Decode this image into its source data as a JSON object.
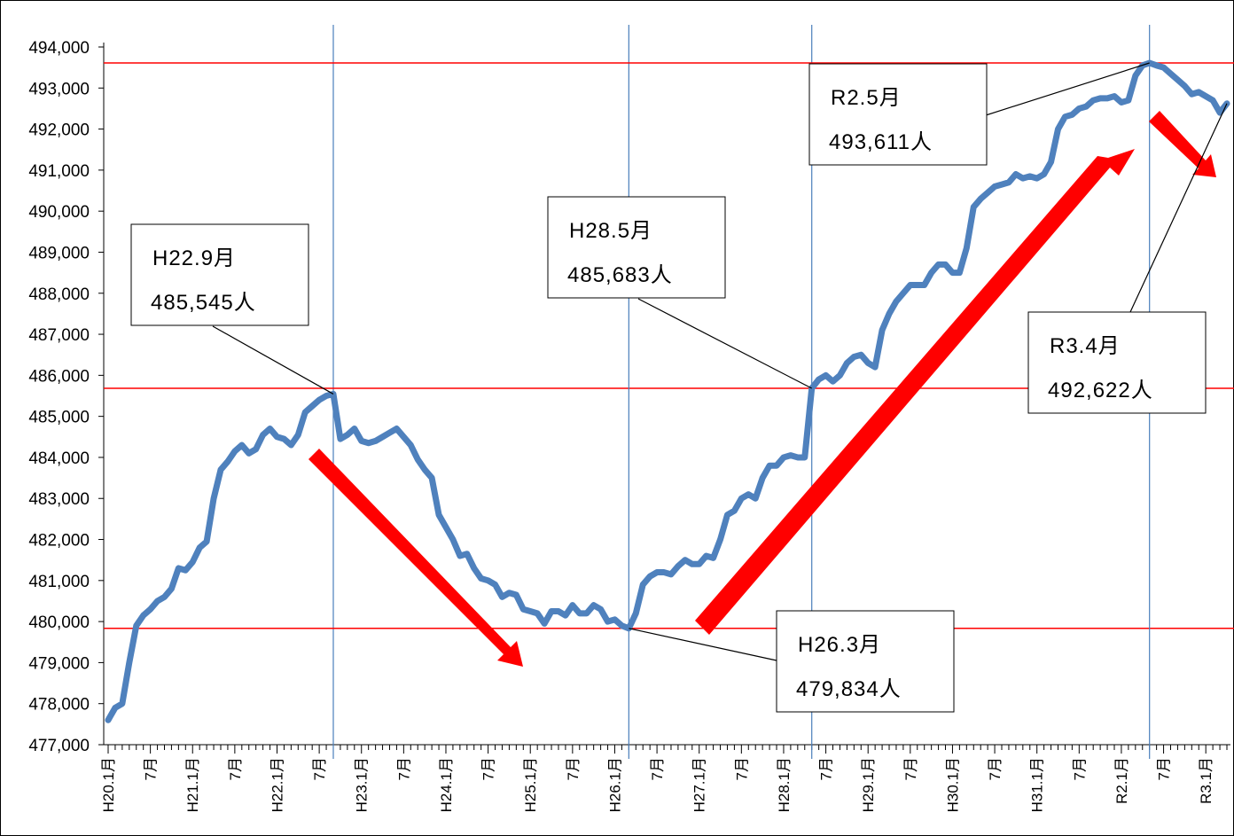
{
  "chart_data": {
    "type": "line",
    "categories": [
      "H20.1月",
      null,
      null,
      null,
      null,
      null,
      "7月",
      null,
      null,
      null,
      null,
      null,
      "H21.1月",
      null,
      null,
      null,
      null,
      null,
      "7月",
      null,
      null,
      null,
      null,
      null,
      "H22.1月",
      null,
      null,
      null,
      null,
      null,
      "7月",
      null,
      null,
      null,
      null,
      null,
      "H23.1月",
      null,
      null,
      null,
      null,
      null,
      "7月",
      null,
      null,
      null,
      null,
      null,
      "H24.1月",
      null,
      null,
      null,
      null,
      null,
      "7月",
      null,
      null,
      null,
      null,
      null,
      "H25.1月",
      null,
      null,
      null,
      null,
      null,
      "7月",
      null,
      null,
      null,
      null,
      null,
      "H26.1月",
      null,
      null,
      null,
      null,
      null,
      "7月",
      null,
      null,
      null,
      null,
      null,
      "H27.1月",
      null,
      null,
      null,
      null,
      null,
      "7月",
      null,
      null,
      null,
      null,
      null,
      "H28.1月",
      null,
      null,
      null,
      null,
      null,
      "7月",
      null,
      null,
      null,
      null,
      null,
      "H29.1月",
      null,
      null,
      null,
      null,
      null,
      "7月",
      null,
      null,
      null,
      null,
      null,
      "H30.1月",
      null,
      null,
      null,
      null,
      null,
      "7月",
      null,
      null,
      null,
      null,
      null,
      "H31.1月",
      null,
      null,
      null,
      null,
      null,
      "7月",
      null,
      null,
      null,
      null,
      null,
      "R2.1月",
      null,
      null,
      null,
      null,
      null,
      "7月",
      null,
      null,
      null,
      null,
      null,
      "R3.1月",
      null,
      null,
      null
    ],
    "series": [
      {
        "color": "#4f81bd",
        "values": [
          477600,
          477900,
          478000,
          479000,
          479900,
          480150,
          480300,
          480500,
          480600,
          480800,
          481300,
          481250,
          481450,
          481800,
          481950,
          483000,
          483700,
          483900,
          484150,
          484300,
          484100,
          484200,
          484550,
          484700,
          484500,
          484450,
          484300,
          484550,
          485100,
          485250,
          485400,
          485500,
          485545,
          484450,
          484550,
          484700,
          484400,
          484350,
          484400,
          484500,
          484600,
          484700,
          484500,
          484300,
          483950,
          483700,
          483500,
          482600,
          482300,
          482000,
          481600,
          481650,
          481300,
          481050,
          481000,
          480900,
          480600,
          480700,
          480650,
          480300,
          480250,
          480200,
          479950,
          480250,
          480250,
          480150,
          480400,
          480200,
          480200,
          480400,
          480300,
          480000,
          480050,
          479900,
          479834,
          480200,
          480900,
          481100,
          481200,
          481200,
          481150,
          481350,
          481500,
          481400,
          481400,
          481600,
          481550,
          482000,
          482600,
          482700,
          483000,
          483100,
          483000,
          483500,
          483800,
          483800,
          484000,
          484050,
          484000,
          484000,
          485683,
          485900,
          486000,
          485850,
          486000,
          486300,
          486450,
          486500,
          486300,
          486200,
          487100,
          487500,
          487800,
          488000,
          488200,
          488200,
          488200,
          488500,
          488700,
          488700,
          488500,
          488500,
          489100,
          490100,
          490300,
          490450,
          490600,
          490650,
          490700,
          490900,
          490800,
          490850,
          490800,
          490900,
          491200,
          492000,
          492300,
          492350,
          492500,
          492550,
          492700,
          492750,
          492750,
          492800,
          492650,
          492700,
          493300,
          493550,
          493611,
          493550,
          493500,
          493350,
          493200,
          493050,
          492850,
          492900,
          492800,
          492700,
          492400,
          492622
        ]
      }
    ],
    "ylim": [
      477000,
      494000
    ],
    "yticks": [
      {
        "value": 477000,
        "label": "477,000"
      },
      {
        "value": 478000,
        "label": "478,000"
      },
      {
        "value": 479000,
        "label": "479,000"
      },
      {
        "value": 480000,
        "label": "480,000"
      },
      {
        "value": 481000,
        "label": "481,000"
      },
      {
        "value": 482000,
        "label": "482,000"
      },
      {
        "value": 483000,
        "label": "483,000"
      },
      {
        "value": 484000,
        "label": "484,000"
      },
      {
        "value": 485000,
        "label": "485,000"
      },
      {
        "value": 486000,
        "label": "486,000"
      },
      {
        "value": 487000,
        "label": "487,000"
      },
      {
        "value": 488000,
        "label": "488,000"
      },
      {
        "value": 489000,
        "label": "489,000"
      },
      {
        "value": 490000,
        "label": "490,000"
      },
      {
        "value": 491000,
        "label": "491,000"
      },
      {
        "value": 492000,
        "label": "492,000"
      },
      {
        "value": 493000,
        "label": "493,000"
      },
      {
        "value": 494000,
        "label": "494,000"
      }
    ],
    "annotations": [
      {
        "label": "H22.9月",
        "text": "485,545人",
        "value": 485545,
        "vline": true,
        "hline": false
      },
      {
        "label": "H28.5月",
        "text": "485,683人",
        "value": 485683,
        "vline": true,
        "hline": true
      },
      {
        "label": "H26.3月",
        "text": "479,834人",
        "value": 479834,
        "vline": true,
        "hline": true
      },
      {
        "label": "R2.5月",
        "text": "493,611人",
        "value": 493611,
        "vline": true,
        "hline": true
      },
      {
        "label": "R3.4月",
        "text": "492,622人",
        "value": 492622,
        "vline": false,
        "hline": false
      }
    ]
  }
}
